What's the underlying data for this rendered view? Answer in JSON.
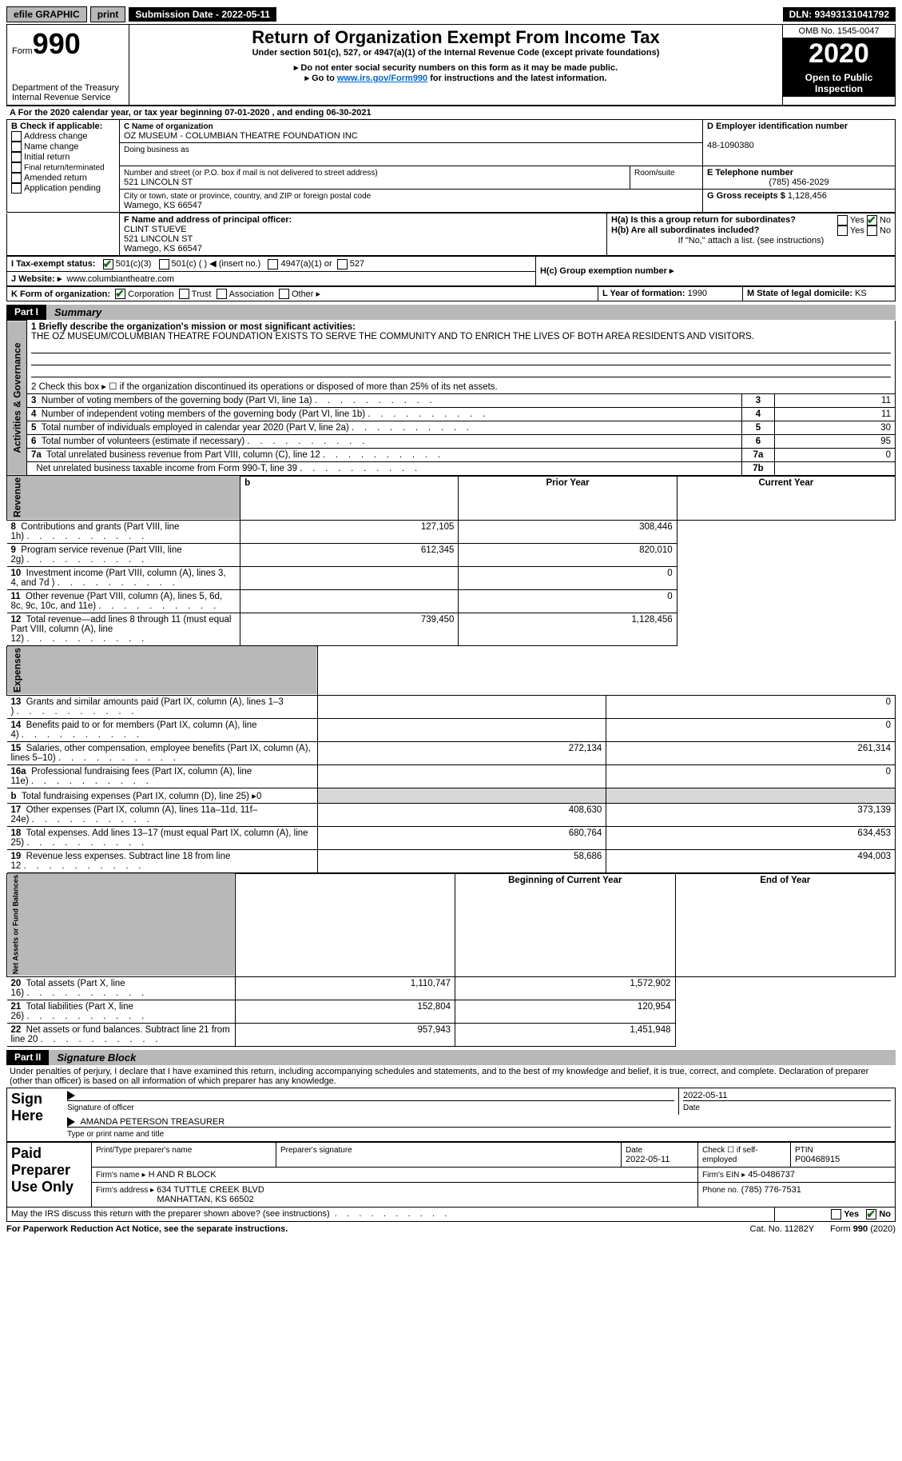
{
  "topbar": {
    "efile": "efile GRAPHIC",
    "print": "print",
    "submission_label": "Submission Date - 2022-05-11",
    "dln": "DLN: 93493131041792"
  },
  "header": {
    "form_prefix": "Form",
    "form_num": "990",
    "dept": "Department of the Treasury\nInternal Revenue Service",
    "title": "Return of Organization Exempt From Income Tax",
    "subtitle": "Under section 501(c), 527, or 4947(a)(1) of the Internal Revenue Code (except private foundations)",
    "note1": "▸ Do not enter social security numbers on this form as it may be made public.",
    "note2_pre": "▸ Go to ",
    "note2_link": "www.irs.gov/Form990",
    "note2_post": " for instructions and the latest information.",
    "omb": "OMB No. 1545-0047",
    "year": "2020",
    "inspect": "Open to Public Inspection"
  },
  "section_a": "A For the 2020 calendar year, or tax year beginning 07-01-2020   , and ending 06-30-2021",
  "box_b": {
    "label": "B Check if applicable:",
    "items": [
      "Address change",
      "Name change",
      "Initial return",
      "Final return/terminated",
      "Amended return",
      "Application pending"
    ]
  },
  "box_c": {
    "name_label": "C Name of organization",
    "name": "OZ MUSEUM - COLUMBIAN THEATRE FOUNDATION INC",
    "dba_label": "Doing business as",
    "addr_label": "Number and street (or P.O. box if mail is not delivered to street address)",
    "room_label": "Room/suite",
    "addr": "521 LINCOLN ST",
    "city_label": "City or town, state or province, country, and ZIP or foreign postal code",
    "city": "Wamego, KS  66547"
  },
  "box_d": {
    "label": "D Employer identification number",
    "value": "48-1090380"
  },
  "box_e": {
    "label": "E Telephone number",
    "value": "(785) 456-2029"
  },
  "box_g": {
    "label": "G Gross receipts $",
    "value": "1,128,456"
  },
  "box_f": {
    "label": "F Name and address of principal officer:",
    "name": "CLINT STUEVE",
    "addr1": "521 LINCOLN ST",
    "addr2": "Wamego, KS  66547"
  },
  "box_h": {
    "a_label": "H(a)  Is this a group return for subordinates?",
    "a_yes": "Yes",
    "a_no": "No",
    "b_label": "H(b)  Are all subordinates included?",
    "b_yes": "Yes",
    "b_no": "No",
    "b_note": "If \"No,\" attach a list. (see instructions)",
    "c_label": "H(c)  Group exemption number ▸"
  },
  "row_i": {
    "label": "I   Tax-exempt status:",
    "opts": [
      "501(c)(3)",
      "501(c) (  ) ◀ (insert no.)",
      "4947(a)(1) or",
      "527"
    ]
  },
  "row_j": {
    "label": "J   Website: ▸",
    "value": "www.columbiantheatre.com"
  },
  "row_k": {
    "label": "K Form of organization:",
    "opts": [
      "Corporation",
      "Trust",
      "Association",
      "Other ▸"
    ]
  },
  "row_l": {
    "label": "L Year of formation:",
    "value": "1990"
  },
  "row_m": {
    "label": "M State of legal domicile:",
    "value": "KS"
  },
  "part1": {
    "tab": "Part I",
    "title": "Summary",
    "line1_label": "1   Briefly describe the organization's mission or most significant activities:",
    "line1_text": "THE OZ MUSEUM/COLUMBIAN THEATRE FOUNDATION EXISTS TO SERVE THE COMMUNITY AND TO ENRICH THE LIVES OF BOTH AREA RESIDENTS AND VISITORS.",
    "line2": "2   Check this box ▸ ☐  if the organization discontinued its operations or disposed of more than 25% of its net assets.",
    "vlabels": {
      "gov": "Activities & Governance",
      "rev": "Revenue",
      "exp": "Expenses",
      "net": "Net Assets or Fund Balances"
    },
    "rows_gov": [
      {
        "n": "3",
        "label": "Number of voting members of the governing body (Part VI, line 1a)",
        "col": "3",
        "val": "11"
      },
      {
        "n": "4",
        "label": "Number of independent voting members of the governing body (Part VI, line 1b)",
        "col": "4",
        "val": "11"
      },
      {
        "n": "5",
        "label": "Total number of individuals employed in calendar year 2020 (Part V, line 2a)",
        "col": "5",
        "val": "30"
      },
      {
        "n": "6",
        "label": "Total number of volunteers (estimate if necessary)",
        "col": "6",
        "val": "95"
      },
      {
        "n": "7a",
        "label": "Total unrelated business revenue from Part VIII, column (C), line 12",
        "col": "7a",
        "val": "0"
      },
      {
        "n": "",
        "label": "Net unrelated business taxable income from Form 990-T, line 39",
        "col": "7b",
        "val": ""
      }
    ],
    "header_prior": "Prior Year",
    "header_current": "Current Year",
    "rows_rev": [
      {
        "n": "8",
        "label": "Contributions and grants (Part VIII, line 1h)",
        "py": "127,105",
        "cy": "308,446"
      },
      {
        "n": "9",
        "label": "Program service revenue (Part VIII, line 2g)",
        "py": "612,345",
        "cy": "820,010"
      },
      {
        "n": "10",
        "label": "Investment income (Part VIII, column (A), lines 3, 4, and 7d )",
        "py": "",
        "cy": "0"
      },
      {
        "n": "11",
        "label": "Other revenue (Part VIII, column (A), lines 5, 6d, 8c, 9c, 10c, and 11e)",
        "py": "",
        "cy": "0"
      },
      {
        "n": "12",
        "label": "Total revenue—add lines 8 through 11 (must equal Part VIII, column (A), line 12)",
        "py": "739,450",
        "cy": "1,128,456"
      }
    ],
    "rows_exp": [
      {
        "n": "13",
        "label": "Grants and similar amounts paid (Part IX, column (A), lines 1–3 )",
        "py": "",
        "cy": "0"
      },
      {
        "n": "14",
        "label": "Benefits paid to or for members (Part IX, column (A), line 4)",
        "py": "",
        "cy": "0"
      },
      {
        "n": "15",
        "label": "Salaries, other compensation, employee benefits (Part IX, column (A), lines 5–10)",
        "py": "272,134",
        "cy": "261,314"
      },
      {
        "n": "16a",
        "label": "Professional fundraising fees (Part IX, column (A), line 11e)",
        "py": "",
        "cy": "0"
      },
      {
        "n": "b",
        "label": "Total fundraising expenses (Part IX, column (D), line 25) ▸0",
        "py": "SHADE",
        "cy": "SHADE"
      },
      {
        "n": "17",
        "label": "Other expenses (Part IX, column (A), lines 11a–11d, 11f–24e)",
        "py": "408,630",
        "cy": "373,139"
      },
      {
        "n": "18",
        "label": "Total expenses. Add lines 13–17 (must equal Part IX, column (A), line 25)",
        "py": "680,764",
        "cy": "634,453"
      },
      {
        "n": "19",
        "label": "Revenue less expenses. Subtract line 18 from line 12",
        "py": "58,686",
        "cy": "494,003"
      }
    ],
    "header_begin": "Beginning of Current Year",
    "header_end": "End of Year",
    "rows_net": [
      {
        "n": "20",
        "label": "Total assets (Part X, line 16)",
        "py": "1,110,747",
        "cy": "1,572,902"
      },
      {
        "n": "21",
        "label": "Total liabilities (Part X, line 26)",
        "py": "152,804",
        "cy": "120,954"
      },
      {
        "n": "22",
        "label": "Net assets or fund balances. Subtract line 21 from line 20",
        "py": "957,943",
        "cy": "1,451,948"
      }
    ]
  },
  "part2": {
    "tab": "Part II",
    "title": "Signature Block",
    "decl": "Under penalties of perjury, I declare that I have examined this return, including accompanying schedules and statements, and to the best of my knowledge and belief, it is true, correct, and complete. Declaration of preparer (other than officer) is based on all information of which preparer has any knowledge.",
    "sign_here": "Sign Here",
    "sig_officer": "Signature of officer",
    "sig_date": "2022-05-11",
    "date_label": "Date",
    "officer_name": "AMANDA PETERSON  TREASURER",
    "officer_type": "Type or print name and title",
    "paid": "Paid Preparer Use Only",
    "prep_name_label": "Print/Type preparer's name",
    "prep_sig_label": "Preparer's signature",
    "prep_date_label": "Date",
    "prep_date": "2022-05-11",
    "check_self": "Check ☐ if self-employed",
    "ptin_label": "PTIN",
    "ptin": "P00468915",
    "firm_name_label": "Firm's name   ▸",
    "firm_name": "H AND R BLOCK",
    "firm_ein_label": "Firm's EIN ▸",
    "firm_ein": "45-0486737",
    "firm_addr_label": "Firm's address ▸",
    "firm_addr1": "634 TUTTLE CREEK BLVD",
    "firm_addr2": "MANHATTAN, KS  66502",
    "phone_label": "Phone no.",
    "phone": "(785) 776-7531",
    "discuss": "May the IRS discuss this return with the preparer shown above? (see instructions)",
    "yes": "Yes",
    "no": "No"
  },
  "footer": {
    "left": "For Paperwork Reduction Act Notice, see the separate instructions.",
    "mid": "Cat. No. 11282Y",
    "right": "Form 990 (2020)"
  },
  "colors": {
    "black": "#000000",
    "gray_btn": "#b8b8b8",
    "gray_shade": "#d8d8d8",
    "link": "#0066cc",
    "check_green": "#1a6b1a"
  }
}
